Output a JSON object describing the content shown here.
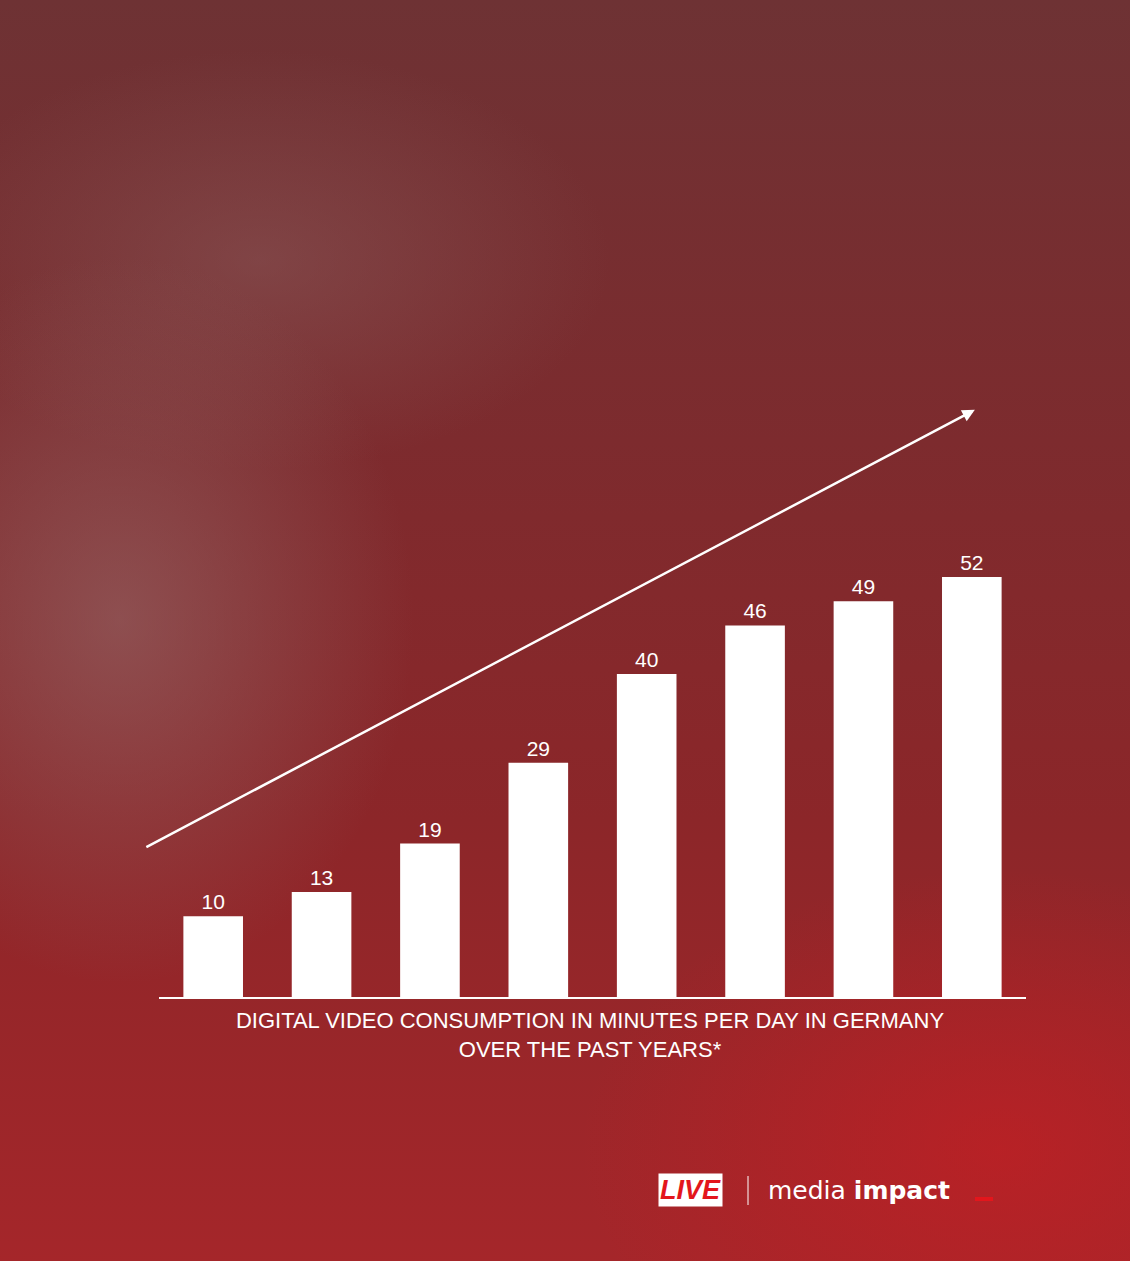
{
  "chart_data": {
    "type": "bar",
    "title": "DIGITAL VIDEO CONSUMPTION IN MINUTES PER DAY IN GERMANY OVER THE PAST YEARS*",
    "categories": [
      null,
      null,
      null,
      null,
      null,
      null,
      null,
      null
    ],
    "values": [
      10,
      13,
      19,
      29,
      40,
      46,
      49,
      52
    ],
    "color": "#ffffff",
    "ylim": [
      0,
      52
    ],
    "yticks": [
      0,
      52
    ],
    "grid": false,
    "data_labels": true,
    "tick_labels": false,
    "annotations": [
      "LIVE",
      "media impact"
    ]
  }
}
